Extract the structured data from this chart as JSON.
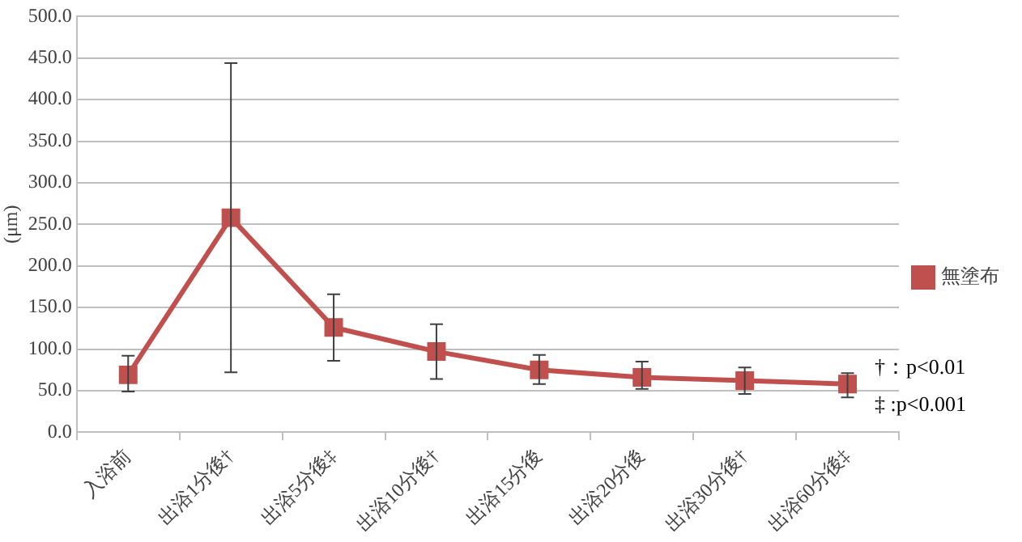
{
  "chart_data": {
    "type": "line",
    "ylabel": "(μm)",
    "categories": [
      "入浴前",
      "出浴1分後†",
      "出浴5分後‡",
      "出浴10分後†",
      "出浴15分後",
      "出浴20分後",
      "出浴30分後†",
      "出浴60分後‡"
    ],
    "series": [
      {
        "name": "無塗布",
        "color": "#c0504d",
        "values": [
          69,
          258,
          126,
          97,
          75,
          66,
          62,
          58
        ],
        "errors": [
          [
            49,
            92
          ],
          [
            72,
            444
          ],
          [
            86,
            166
          ],
          [
            64,
            130
          ],
          [
            58,
            93
          ],
          [
            52,
            85
          ],
          [
            46,
            78
          ],
          [
            42,
            71
          ]
        ]
      }
    ],
    "ylim": [
      0,
      500
    ],
    "yticks": [
      {
        "value": 0,
        "label": "0.0"
      },
      {
        "value": 50,
        "label": "50.0"
      },
      {
        "value": 100,
        "label": "100.0"
      },
      {
        "value": 150,
        "label": "150.0"
      },
      {
        "value": 200,
        "label": "200.0"
      },
      {
        "value": 250,
        "label": "250.0"
      },
      {
        "value": 300,
        "label": "300.0"
      },
      {
        "value": 350,
        "label": "350.0"
      },
      {
        "value": 400,
        "label": "400.0"
      },
      {
        "value": 450,
        "label": "450.0"
      },
      {
        "value": 500,
        "label": "500.0"
      }
    ],
    "grid": "y",
    "legend": "right",
    "marker": "square",
    "line_style": "solid",
    "annotations": [
      "†：p<0.01",
      "‡ :p<0.001"
    ]
  }
}
